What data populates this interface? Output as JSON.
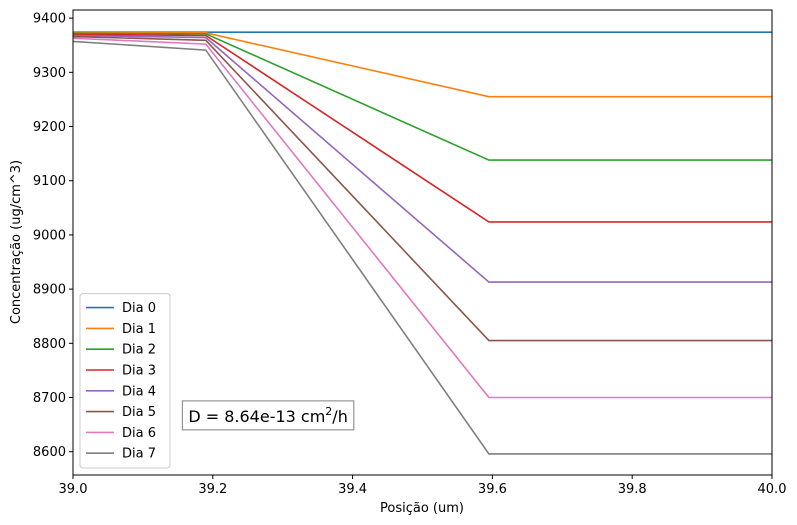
{
  "chart_data": {
    "type": "line",
    "title": "",
    "xlabel": "Posição (um)",
    "ylabel": "Concentração (ug/cm^3)",
    "xlim": [
      39.0,
      40.0
    ],
    "ylim": [
      8557,
      9415
    ],
    "xticks": [
      39.0,
      39.2,
      39.4,
      39.6,
      39.8,
      40.0
    ],
    "xtick_labels": [
      "39.0",
      "39.2",
      "39.4",
      "39.6",
      "39.8",
      "40.0"
    ],
    "yticks": [
      8600,
      8700,
      8800,
      8900,
      9000,
      9100,
      9200,
      9300,
      9400
    ],
    "ytick_labels": [
      "8600",
      "8700",
      "8800",
      "8900",
      "9000",
      "9100",
      "9200",
      "9300",
      "9400"
    ],
    "grid": false,
    "legend_position": "lower-left",
    "x": [
      39.0,
      39.19,
      39.595,
      40.0
    ],
    "series": [
      {
        "name": "Dia 0",
        "color": "#1f77b4",
        "values": [
          9374,
          9374,
          9374,
          9374
        ]
      },
      {
        "name": "Dia 1",
        "color": "#ff7f0e",
        "values": [
          9373,
          9373,
          9255,
          9255
        ]
      },
      {
        "name": "Dia 2",
        "color": "#2ca02c",
        "values": [
          9372,
          9371,
          9138,
          9138
        ]
      },
      {
        "name": "Dia 3",
        "color": "#d62728",
        "values": [
          9370,
          9368,
          9024,
          9024
        ]
      },
      {
        "name": "Dia 4",
        "color": "#9467bd",
        "values": [
          9368,
          9364,
          8913,
          8913
        ]
      },
      {
        "name": "Dia 5",
        "color": "#8c564b",
        "values": [
          9366,
          9359,
          8805,
          8805
        ]
      },
      {
        "name": "Dia 6",
        "color": "#e377c2",
        "values": [
          9363,
          9352,
          8700,
          8700
        ]
      },
      {
        "name": "Dia 7",
        "color": "#7f7f7f",
        "values": [
          9357,
          9341,
          8596,
          8596
        ]
      }
    ],
    "annotation": {
      "prefix": "D = 8.64e-13 cm",
      "superscript": "2",
      "suffix": "/h",
      "x": 39.165,
      "y": 8655
    }
  }
}
